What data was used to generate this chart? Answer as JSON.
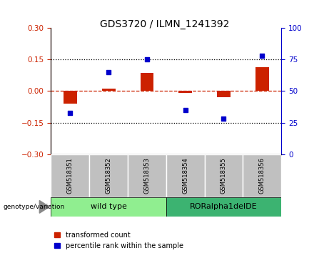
{
  "title": "GDS3720 / ILMN_1241392",
  "categories": [
    "GSM518351",
    "GSM518352",
    "GSM518353",
    "GSM518354",
    "GSM518355",
    "GSM518356"
  ],
  "red_values": [
    -0.06,
    0.01,
    0.085,
    -0.01,
    -0.03,
    0.115
  ],
  "blue_values": [
    33,
    65,
    75,
    35,
    28,
    78
  ],
  "ylim_left": [
    -0.3,
    0.3
  ],
  "ylim_right": [
    0,
    100
  ],
  "yticks_left": [
    -0.3,
    -0.15,
    0,
    0.15,
    0.3
  ],
  "yticks_right": [
    0,
    25,
    50,
    75,
    100
  ],
  "hlines": [
    0.15,
    -0.15
  ],
  "group1_label": "wild type",
  "group2_label": "RORalpha1delDE",
  "group1_indices": [
    0,
    1,
    2
  ],
  "group2_indices": [
    3,
    4,
    5
  ],
  "group1_color": "#90EE90",
  "group2_color": "#3CB371",
  "bar_color": "#CC2200",
  "dot_color": "#0000CC",
  "zero_line_color": "#CC2200",
  "legend_label_red": "transformed count",
  "legend_label_blue": "percentile rank within the sample",
  "tick_bg_color": "#C0C0C0",
  "bar_width": 0.35,
  "dot_size": 25,
  "left_spine_color": "#CC2200",
  "right_spine_color": "#0000CC"
}
